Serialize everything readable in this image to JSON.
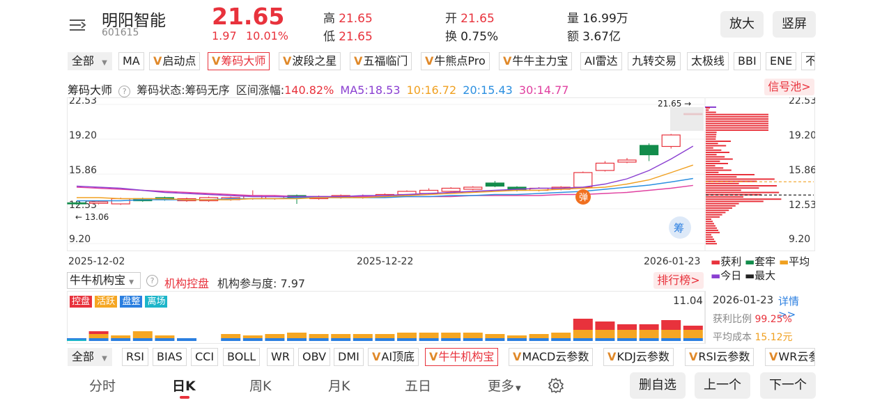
{
  "header": {
    "menu_icon": "menu-icon",
    "stock_name": "明阳智能",
    "stock_code": "601615",
    "price": "21.65",
    "change": "1.97",
    "change_pct": "10.01%",
    "high_label": "高",
    "high": "21.65",
    "low_label": "低",
    "low": "21.65",
    "open_label": "开",
    "open": "21.65",
    "turnover_label": "换",
    "turnover": "0.75%",
    "volume_label": "量",
    "volume": "16.99万",
    "amount_label": "额",
    "amount": "3.67亿",
    "zoom_button": "放大",
    "portrait_button": "竖屏"
  },
  "indicator_tabs": {
    "all_label": "全部",
    "items": [
      "MA",
      "启动点",
      "筹码大师",
      "波段之星",
      "五福临门",
      "牛熊点Pro",
      "牛牛主力宝",
      "AI雷达",
      "九转交易",
      "太极线",
      "BBI",
      "ENE",
      "不"
    ]
  },
  "chip_bar": {
    "name": "筹码大师",
    "status": "筹码状态:筹码无序",
    "range_change_label": "区间涨幅:",
    "range_change": "140.82%",
    "ma5": "MA5:18.53",
    "ma10": "10:16.72",
    "ma20": "20:15.43",
    "ma30": "30:14.77",
    "signal_pool": "信号池>"
  },
  "main_chart": {
    "y_ticks_left": [
      "22.53",
      "19.20",
      "15.86",
      "12.53",
      "9.20"
    ],
    "y_ticks_right": [
      "22.53",
      "19.20",
      "15.86",
      "12.53",
      "9.20"
    ],
    "x_ticks": [
      "2025-12-02",
      "2025-12-22",
      "2026-01-23"
    ],
    "max_marker": "21.65 →",
    "min_marker": "← 13.06",
    "signal_badge": "弹",
    "chip_badge": "筹"
  },
  "chart_data": {
    "type": "candlestick",
    "y_range": [
      9.2,
      22.53
    ],
    "candles": [
      {
        "o": 13.0,
        "c": 13.1,
        "h": 13.2,
        "l": 12.9,
        "up": false
      },
      {
        "o": 13.05,
        "c": 13.2,
        "h": 13.3,
        "l": 12.95,
        "up": true
      },
      {
        "o": 13.0,
        "c": 13.5,
        "h": 13.6,
        "l": 12.9,
        "up": true
      },
      {
        "o": 13.3,
        "c": 13.5,
        "h": 13.6,
        "l": 13.2,
        "up": false
      },
      {
        "o": 13.4,
        "c": 13.6,
        "h": 13.7,
        "l": 13.3,
        "up": false
      },
      {
        "o": 13.3,
        "c": 13.5,
        "h": 13.6,
        "l": 13.2,
        "up": true
      },
      {
        "o": 13.3,
        "c": 13.6,
        "h": 13.7,
        "l": 13.2,
        "up": true
      },
      {
        "o": 13.4,
        "c": 13.6,
        "h": 13.7,
        "l": 13.3,
        "up": true
      },
      {
        "o": 13.5,
        "c": 13.8,
        "h": 14.3,
        "l": 13.4,
        "up": true
      },
      {
        "o": 13.5,
        "c": 13.7,
        "h": 13.8,
        "l": 13.4,
        "up": true
      },
      {
        "o": 13.8,
        "c": 13.6,
        "h": 13.9,
        "l": 13.0,
        "up": false
      },
      {
        "o": 13.5,
        "c": 13.7,
        "h": 13.8,
        "l": 13.4,
        "up": true
      },
      {
        "o": 13.6,
        "c": 13.8,
        "h": 13.9,
        "l": 13.5,
        "up": true
      },
      {
        "o": 13.6,
        "c": 13.7,
        "h": 13.9,
        "l": 13.5,
        "up": true
      },
      {
        "o": 13.7,
        "c": 13.9,
        "h": 14.0,
        "l": 13.6,
        "up": true
      },
      {
        "o": 13.9,
        "c": 14.2,
        "h": 14.3,
        "l": 13.8,
        "up": true
      },
      {
        "o": 14.0,
        "c": 14.3,
        "h": 14.5,
        "l": 13.9,
        "up": true
      },
      {
        "o": 14.2,
        "c": 14.5,
        "h": 14.6,
        "l": 14.1,
        "up": true
      },
      {
        "o": 14.4,
        "c": 14.6,
        "h": 14.7,
        "l": 14.3,
        "up": true
      },
      {
        "o": 14.7,
        "c": 15.0,
        "h": 15.2,
        "l": 14.6,
        "up": false
      },
      {
        "o": 14.6,
        "c": 14.3,
        "h": 14.7,
        "l": 14.2,
        "up": false
      },
      {
        "o": 14.3,
        "c": 14.5,
        "h": 14.6,
        "l": 14.2,
        "up": true
      },
      {
        "o": 14.4,
        "c": 14.6,
        "h": 14.7,
        "l": 14.3,
        "up": true
      },
      {
        "o": 14.6,
        "c": 16.0,
        "h": 16.1,
        "l": 14.5,
        "up": true
      },
      {
        "o": 16.2,
        "c": 16.9,
        "h": 17.1,
        "l": 16.1,
        "up": true
      },
      {
        "o": 17.0,
        "c": 17.2,
        "h": 17.4,
        "l": 16.9,
        "up": true
      },
      {
        "o": 18.6,
        "c": 17.7,
        "h": 18.8,
        "l": 17.1,
        "up": false
      },
      {
        "o": 18.5,
        "c": 19.6,
        "h": 19.7,
        "l": 18.3,
        "up": true
      },
      {
        "o": 21.65,
        "c": 21.65,
        "h": 21.65,
        "l": 21.65,
        "up": true
      }
    ],
    "ma_lines": {
      "ma5": [
        14.7,
        14.6,
        14.5,
        14.3,
        14.1,
        14.0,
        13.9,
        13.8,
        13.7,
        13.7,
        13.7,
        13.7,
        13.7,
        13.8,
        13.8,
        13.9,
        14.0,
        14.1,
        14.2,
        14.3,
        14.4,
        14.5,
        14.5,
        14.6,
        14.9,
        15.4,
        16.2,
        17.3,
        18.53
      ],
      "ma10": [
        13.6,
        13.6,
        13.5,
        13.5,
        13.5,
        13.4,
        13.4,
        13.4,
        13.5,
        13.5,
        13.5,
        13.6,
        13.6,
        13.6,
        13.7,
        13.8,
        13.9,
        14.0,
        14.1,
        14.2,
        14.3,
        14.3,
        14.4,
        14.5,
        14.6,
        14.9,
        15.3,
        16.0,
        16.72
      ],
      "ma20": [
        13.3,
        13.3,
        13.3,
        13.4,
        13.4,
        13.4,
        13.4,
        13.5,
        13.5,
        13.5,
        13.6,
        13.6,
        13.6,
        13.6,
        13.6,
        13.7,
        13.7,
        13.8,
        13.8,
        13.9,
        13.9,
        14.0,
        14.1,
        14.2,
        14.4,
        14.6,
        14.8,
        15.1,
        15.43
      ],
      "ma30": [
        14.6,
        14.5,
        14.4,
        14.3,
        14.2,
        14.1,
        14.0,
        13.9,
        13.8,
        13.8,
        13.7,
        13.7,
        13.7,
        13.7,
        13.7,
        13.7,
        13.7,
        13.7,
        13.8,
        13.8,
        13.8,
        13.8,
        13.9,
        13.9,
        14.0,
        14.1,
        14.3,
        14.5,
        14.77
      ]
    },
    "inst_bars": [
      {
        "a": 0.02,
        "b": 0.0,
        "c": 0.0
      },
      {
        "a": 0.2,
        "b": 0.15,
        "c": 0.1
      },
      {
        "a": 0.15,
        "b": 0.1,
        "c": 0.0
      },
      {
        "a": 0.3,
        "b": 0.25,
        "c": 0.0
      },
      {
        "a": 0.25,
        "b": 0.1,
        "c": 0.0
      },
      {
        "a": 0.15,
        "b": 0.0,
        "c": 0.0
      },
      {
        "a": 0.0,
        "b": 0.0,
        "c": 0.0
      },
      {
        "a": 0.25,
        "b": 0.15,
        "c": 0.0
      },
      {
        "a": 0.2,
        "b": 0.1,
        "c": 0.0
      },
      {
        "a": 0.25,
        "b": 0.15,
        "c": 0.0
      },
      {
        "a": 0.35,
        "b": 0.2,
        "c": 0.0
      },
      {
        "a": 0.25,
        "b": 0.15,
        "c": 0.0
      },
      {
        "a": 0.25,
        "b": 0.15,
        "c": 0.0
      },
      {
        "a": 0.25,
        "b": 0.15,
        "c": 0.0
      },
      {
        "a": 0.25,
        "b": 0.15,
        "c": 0.0
      },
      {
        "a": 0.3,
        "b": 0.2,
        "c": 0.0
      },
      {
        "a": 0.35,
        "b": 0.2,
        "c": 0.0
      },
      {
        "a": 0.3,
        "b": 0.2,
        "c": 0.0
      },
      {
        "a": 0.3,
        "b": 0.2,
        "c": 0.0
      },
      {
        "a": 0.25,
        "b": 0.15,
        "c": 0.0
      },
      {
        "a": 0.15,
        "b": 0.1,
        "c": 0.0
      },
      {
        "a": 0.25,
        "b": 0.15,
        "c": 0.0
      },
      {
        "a": 0.3,
        "b": 0.2,
        "c": 0.0
      },
      {
        "a": 0.5,
        "b": 0.3,
        "c": 0.4
      },
      {
        "a": 0.45,
        "b": 0.3,
        "c": 0.3
      },
      {
        "a": 0.4,
        "b": 0.3,
        "c": 0.2
      },
      {
        "a": 0.4,
        "b": 0.3,
        "c": 0.2
      },
      {
        "a": 0.45,
        "b": 0.3,
        "c": 0.35
      },
      {
        "a": 0.45,
        "b": 0.3,
        "c": 0.15
      }
    ]
  },
  "chip_legend": {
    "profit": "获利",
    "trapped": "套牢",
    "average": "平均",
    "today": "今日",
    "max": "最大"
  },
  "chip_info": {
    "date": "2026-01-23",
    "details_link": "详情>>",
    "profit_ratio_label": "获利比例",
    "profit_ratio": "99.25%",
    "avg_cost_label": "平均成本",
    "avg_cost": "15.12元"
  },
  "inst_panel": {
    "selector": "牛牛机构宝",
    "title": "机构控盘",
    "participation": "机构参与度: 7.97",
    "ranking": "排行榜>",
    "legend": [
      "控盘",
      "活跃",
      "盘整",
      "离场"
    ],
    "legend_colors": [
      "#e8323c",
      "#f5a623",
      "#2b7fe0",
      "#1cb5c9"
    ],
    "max_value": "11.04"
  },
  "bottom_indicators": {
    "all_label": "全部",
    "items": [
      "RSI",
      "BIAS",
      "CCI",
      "BOLL",
      "WR",
      "OBV",
      "DMI",
      "AI顶底",
      "牛牛机构宝",
      "MACD云参数",
      "KDJ云参数",
      "RSI云参数",
      "WR云参"
    ]
  },
  "period_tabs": {
    "items": [
      "分时",
      "日K",
      "周K",
      "月K",
      "五日",
      "更多"
    ],
    "active": "日K"
  },
  "actions": {
    "delete_watch": "删自选",
    "prev": "上一个",
    "next": "下一个"
  },
  "colors": {
    "up": "#e8323c",
    "down": "#128c4b",
    "ma5": "#8a3fd1",
    "ma10": "#f0a020",
    "ma20": "#2b8fe0",
    "ma30": "#e040a0"
  }
}
